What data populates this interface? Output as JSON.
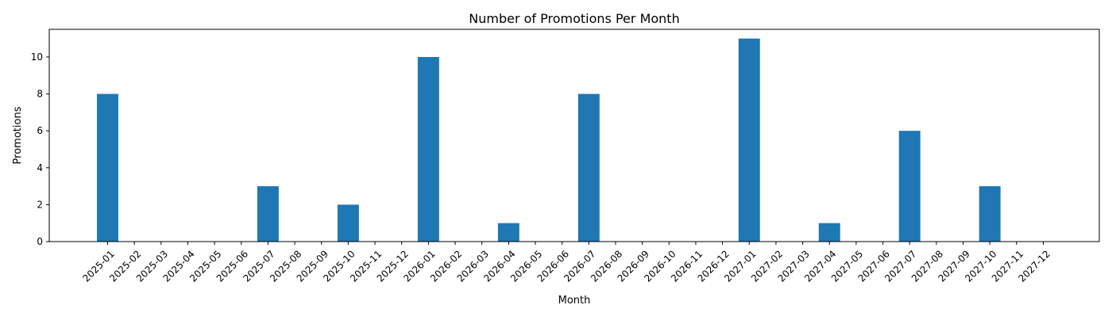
{
  "chart_data": {
    "type": "bar",
    "title": "Number of Promotions Per Month",
    "xlabel": "Month",
    "ylabel": "Promotions",
    "categories": [
      "2025-01",
      "2025-02",
      "2025-03",
      "2025-04",
      "2025-05",
      "2025-06",
      "2025-07",
      "2025-08",
      "2025-09",
      "2025-10",
      "2025-11",
      "2025-12",
      "2026-01",
      "2026-02",
      "2026-03",
      "2026-04",
      "2026-05",
      "2026-06",
      "2026-07",
      "2026-08",
      "2026-09",
      "2026-10",
      "2026-11",
      "2026-12",
      "2027-01",
      "2027-02",
      "2027-03",
      "2027-04",
      "2027-05",
      "2027-06",
      "2027-07",
      "2027-08",
      "2027-09",
      "2027-10",
      "2027-11",
      "2027-12"
    ],
    "values": [
      8,
      0,
      0,
      0,
      0,
      0,
      3,
      0,
      0,
      2,
      0,
      0,
      10,
      0,
      0,
      1,
      0,
      0,
      8,
      0,
      0,
      0,
      0,
      0,
      11,
      0,
      0,
      1,
      0,
      0,
      6,
      0,
      0,
      3,
      0,
      0
    ],
    "ylim": [
      0,
      11.5
    ],
    "yticks": [
      0,
      2,
      4,
      6,
      8,
      10
    ],
    "grid": false,
    "bar_color": "#1f77b4"
  }
}
